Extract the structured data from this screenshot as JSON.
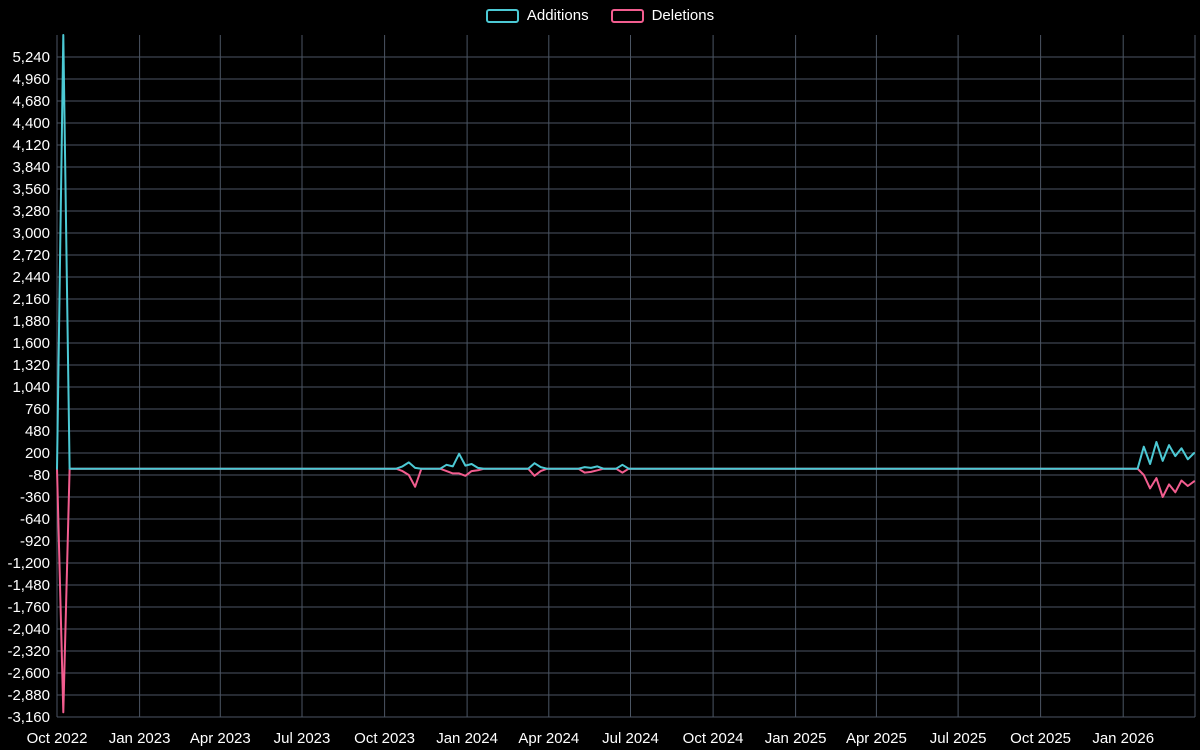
{
  "legend": {
    "items": [
      {
        "label": "Additions",
        "color": "#4cc9d4"
      },
      {
        "label": "Deletions",
        "color": "#f25d8f"
      }
    ]
  },
  "chart_data": {
    "type": "line",
    "background": "#000000",
    "grid_color": "#4b5563",
    "text_color": "#ffffff",
    "frequency": "weekly",
    "default_value": 0,
    "x_domain": [
      "2022-10-01",
      "2026-03-22"
    ],
    "y_axis": {
      "max": 5240,
      "min": -3160,
      "step": 280
    },
    "x_ticks": [
      {
        "label": "Oct 2022",
        "date": "2022-10-01"
      },
      {
        "label": "Jan 2023",
        "date": "2023-01-01"
      },
      {
        "label": "Apr 2023",
        "date": "2023-04-01"
      },
      {
        "label": "Jul 2023",
        "date": "2023-07-01"
      },
      {
        "label": "Oct 2023",
        "date": "2023-10-01"
      },
      {
        "label": "Jan 2024",
        "date": "2024-01-01"
      },
      {
        "label": "Apr 2024",
        "date": "2024-04-01"
      },
      {
        "label": "Jul 2024",
        "date": "2024-07-01"
      },
      {
        "label": "Oct 2024",
        "date": "2024-10-01"
      },
      {
        "label": "Jan 2025",
        "date": "2025-01-01"
      },
      {
        "label": "Apr 2025",
        "date": "2025-04-01"
      },
      {
        "label": "Jul 2025",
        "date": "2025-07-01"
      },
      {
        "label": "Oct 2025",
        "date": "2025-10-01"
      },
      {
        "label": "Jan 2026",
        "date": "2026-01-01"
      }
    ],
    "series": [
      {
        "name": "Additions",
        "color": "#4cc9d4",
        "key": "additions"
      },
      {
        "name": "Deletions",
        "color": "#f25d8f",
        "key": "deletions"
      }
    ],
    "points": [
      {
        "date": "2022-10-08",
        "additions": 5520,
        "deletions": -3100
      },
      {
        "date": "2023-10-22",
        "additions": 30,
        "deletions": -30
      },
      {
        "date": "2023-10-29",
        "additions": 80,
        "deletions": -80
      },
      {
        "date": "2023-11-05",
        "additions": 10,
        "deletions": -230
      },
      {
        "date": "2023-12-10",
        "additions": 50,
        "deletions": -30
      },
      {
        "date": "2023-12-17",
        "additions": 30,
        "deletions": -60
      },
      {
        "date": "2023-12-24",
        "additions": 190,
        "deletions": -60
      },
      {
        "date": "2023-12-31",
        "additions": 40,
        "deletions": -90
      },
      {
        "date": "2024-01-07",
        "additions": 60,
        "deletions": -30
      },
      {
        "date": "2024-01-14",
        "additions": 10,
        "deletions": -20
      },
      {
        "date": "2024-03-17",
        "additions": 70,
        "deletions": -90
      },
      {
        "date": "2024-03-24",
        "additions": 20,
        "deletions": -30
      },
      {
        "date": "2024-05-12",
        "additions": 20,
        "deletions": -50
      },
      {
        "date": "2024-05-19",
        "additions": 10,
        "deletions": -40
      },
      {
        "date": "2024-05-26",
        "additions": 30,
        "deletions": -20
      },
      {
        "date": "2024-06-23",
        "additions": 50,
        "deletions": -50
      },
      {
        "date": "2026-01-25",
        "additions": 280,
        "deletions": -80
      },
      {
        "date": "2026-02-01",
        "additions": 60,
        "deletions": -250
      },
      {
        "date": "2026-02-08",
        "additions": 340,
        "deletions": -120
      },
      {
        "date": "2026-02-15",
        "additions": 100,
        "deletions": -360
      },
      {
        "date": "2026-02-22",
        "additions": 300,
        "deletions": -200
      },
      {
        "date": "2026-03-01",
        "additions": 160,
        "deletions": -300
      },
      {
        "date": "2026-03-08",
        "additions": 260,
        "deletions": -150
      },
      {
        "date": "2026-03-15",
        "additions": 120,
        "deletions": -220
      },
      {
        "date": "2026-03-22",
        "additions": 200,
        "deletions": -160
      }
    ]
  }
}
